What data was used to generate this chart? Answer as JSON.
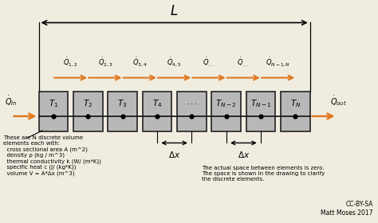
{
  "bg_color": "#f0ede0",
  "box_color": "#b8b8b8",
  "box_edge": "#222222",
  "arrow_color": "#e07820",
  "line_color": "#111111",
  "boxes": [
    "T_1",
    "T_2",
    "T_3",
    "T_4",
    "...",
    "T_{N-2}",
    "T_{N-1}",
    "T_N"
  ],
  "q_label_texts": [
    "$\\dot{Q}_{1,2}$",
    "$\\dot{Q}_{2,3}$",
    "$\\dot{Q}_{3,4}$",
    "$\\dot{Q}_{4,5}$",
    "$\\dot{Q}_{...}$",
    "$\\dot{Q}_{...}$",
    "$\\dot{Q}_{N-1,N}$"
  ],
  "left_label": "$\\dot{Q}_{in}$",
  "right_label": "$\\dot{Q}_{out}$",
  "note_left_lines": [
    "These are N discrete volume",
    "elements each with:",
    "  cross sectional area A (m^2)",
    "  density ρ (kg / m^3)",
    "  thermal conductivity k (W/ (m*K))",
    "  specific heat c (J/ (kg*K))",
    "  volume V = A*Δx (m^3)"
  ],
  "note_right_lines": [
    "The actual space between elements is zero.",
    "The space is shown in the drawing to clarify",
    "the discrete elements."
  ],
  "credit": "CC-BY-SA\nMatt Moses 2017"
}
